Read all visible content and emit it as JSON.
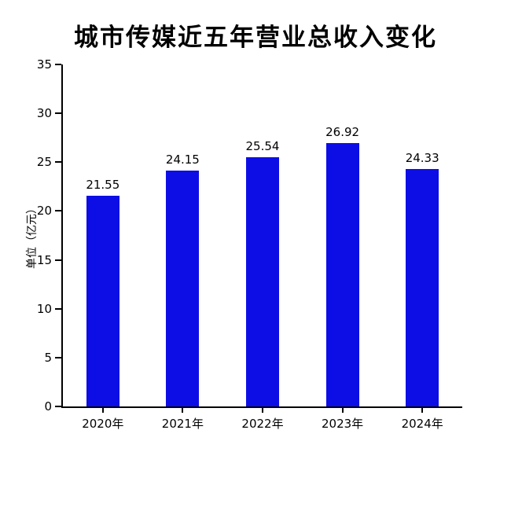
{
  "chart_data": {
    "type": "bar",
    "title": "城市传媒近五年营业总收入变化",
    "xlabel": "",
    "ylabel": "单位（亿元）",
    "categories": [
      "2020年",
      "2021年",
      "2022年",
      "2023年",
      "2024年"
    ],
    "values": [
      21.55,
      24.15,
      25.54,
      26.92,
      24.33
    ],
    "value_labels": [
      "21.55",
      "24.15",
      "25.54",
      "26.92",
      "24.33"
    ],
    "ylim": [
      0,
      35
    ],
    "yticks": [
      0,
      5,
      10,
      15,
      20,
      25,
      30,
      35
    ],
    "bar_color": "#0d0ee6",
    "axis_color": "#000000",
    "background_color": "#ffffff",
    "grid": false,
    "legend_position": "none"
  }
}
